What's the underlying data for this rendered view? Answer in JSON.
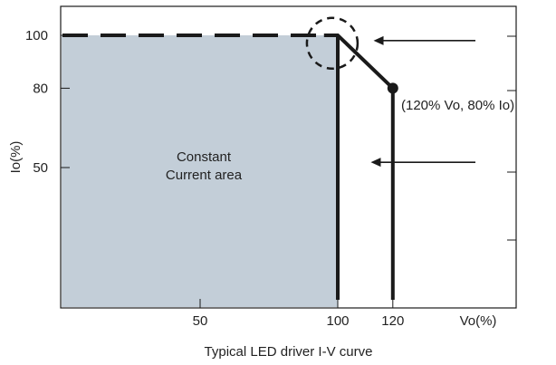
{
  "chart_data": {
    "type": "line",
    "title": "",
    "caption": "Typical LED driver I-V curve",
    "xlabel": "Vo(%)",
    "ylabel": "Io(%)",
    "xlim": [
      0,
      150
    ],
    "ylim": [
      0,
      108
    ],
    "x_ticks": [
      {
        "value": 50,
        "label": "50"
      },
      {
        "value": 100,
        "label": "100"
      },
      {
        "value": 120,
        "label": "120"
      }
    ],
    "y_ticks": [
      {
        "value": 100,
        "label": "100"
      },
      {
        "value": 80,
        "label": "80"
      },
      {
        "value": 50,
        "label": "50"
      }
    ],
    "region": {
      "label_lines": [
        "Constant",
        "Current area"
      ],
      "x_range": [
        0,
        100
      ],
      "y_range": [
        0,
        100
      ],
      "color": "#c3ced8"
    },
    "series": [
      {
        "style": "dashed",
        "points": [
          [
            0,
            100
          ],
          [
            100,
            100
          ]
        ]
      },
      {
        "style": "solid",
        "points": [
          [
            95,
            100
          ],
          [
            100,
            100
          ],
          [
            120,
            80
          ]
        ]
      },
      {
        "style": "solid",
        "points": [
          [
            100,
            0
          ],
          [
            100,
            100
          ]
        ]
      },
      {
        "style": "solid",
        "points": [
          [
            120,
            0
          ],
          [
            120,
            80
          ]
        ]
      }
    ],
    "marker": {
      "x": 120,
      "y": 80,
      "label": "(120% Vo, 80% Io)"
    },
    "highlight_circle": {
      "x": 98,
      "y": 97
    },
    "arrows": [
      {
        "from_x": 150,
        "y": 98,
        "to_x": 113
      },
      {
        "from_x": 150,
        "y": 52,
        "to_x": 112
      }
    ],
    "colors": {
      "line": "#1a1a1a",
      "frame": "#1a1a1a",
      "text": "#222222"
    }
  }
}
